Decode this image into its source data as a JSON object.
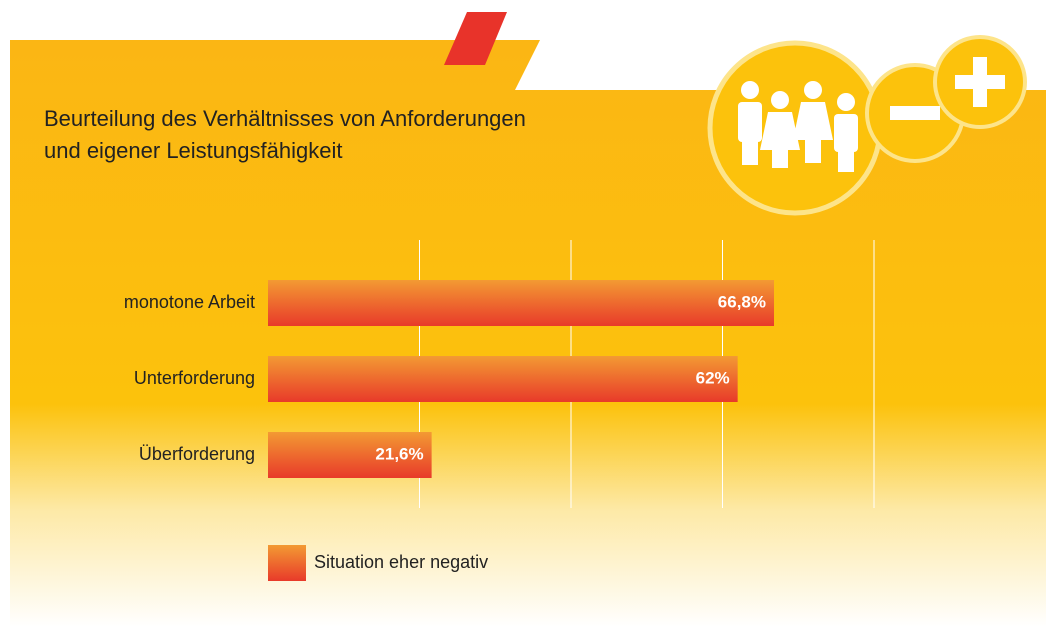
{
  "chart_data": {
    "type": "bar",
    "orientation": "horizontal",
    "title": [
      "Beurteilung des Verhältnisses von Anforderungen",
      "und eigener Leistungsfähigkeit"
    ],
    "categories": [
      "monotone Arbeit",
      "Unterforderung",
      "Überforderung"
    ],
    "series": [
      {
        "name": "Situation eher negativ",
        "color": [
          "#f39a33",
          "#e83a2a"
        ],
        "values": [
          66.8,
          62,
          21.6
        ],
        "value_labels": [
          "66,8%",
          "62%",
          "21,6%"
        ]
      }
    ],
    "xlim": [
      0,
      80
    ],
    "xticks": [
      20,
      40,
      60,
      80
    ],
    "grid": true
  }
}
